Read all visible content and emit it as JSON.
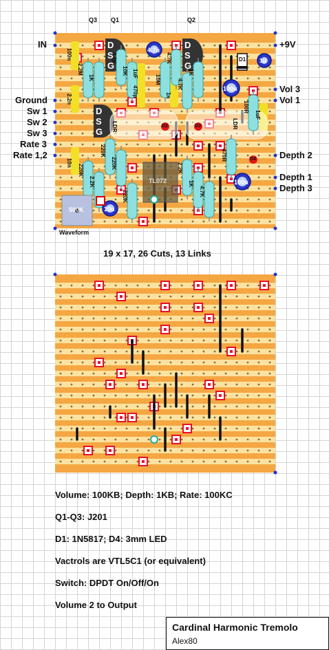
{
  "top_labels": {
    "q3": "Q3",
    "q1": "Q1",
    "q2": "Q2"
  },
  "left_labels": {
    "in": "IN",
    "ground": "Ground",
    "sw1": "Sw 1",
    "sw2": "Sw 2",
    "sw3": "Sw 3",
    "rate3": "Rate 3",
    "rate12": "Rate 1,2"
  },
  "right_labels": {
    "plus9v": "+9V",
    "vol3": "Vol 3",
    "vol1": "Vol 1",
    "depth2": "Depth 2",
    "depth1": "Depth 1",
    "depth3": "Depth 3"
  },
  "waveform_label": "Waveform",
  "caption": "19 x 17, 26 Cuts, 13 Links",
  "components": {
    "dsg": [
      "D",
      "S",
      "G"
    ],
    "r_100n": "100n",
    "r_22m": "2.2M",
    "r_1k": "1K",
    "r_22n": "2.2n",
    "r_22k": "2.2K",
    "r_10k": "10K",
    "c_47u": "4.7u",
    "c_1uf": "1uF",
    "r_470p": "470p",
    "r_10m": "10M",
    "r_47k": "4.7K",
    "c_1n": "1n",
    "d1": "D1",
    "c_1u": "1u",
    "c_100u": "100u",
    "r_100r": "100R",
    "c_1uf2": "1uF",
    "ldr": "LDR",
    "d2": "D2",
    "d3": "D3",
    "d4": "D4",
    "r_220k": "220K",
    "r_10n": "10n",
    "ic": "TL072",
    "r_470r": "470R",
    "pot": "500K",
    "c_10u": "10u"
  },
  "notes": {
    "pots": "Volume: 100KB;  Depth: 1KB;  Rate: 100KC",
    "jfets": "Q1-Q3: J201",
    "diodes": "D1: 1N5817;  D4: 3mm LED",
    "vactrols": "Vactrols are VTL5C1 (or equivalent)",
    "switch": "Switch: DPDT On/Off/On",
    "volume2": "Volume 2 to Output"
  },
  "title_block": {
    "title": "Cardinal Harmonic Tremolo",
    "author": "Alex80"
  },
  "colors": {
    "board": "#f4a742",
    "strip": "#fbe2a0",
    "cut": "#e8102a",
    "link": "#111111",
    "resistor": "#8ee0e0",
    "cap_blue": "#2c35c8",
    "film_cap": "#f2e026",
    "led": "#e01818"
  }
}
